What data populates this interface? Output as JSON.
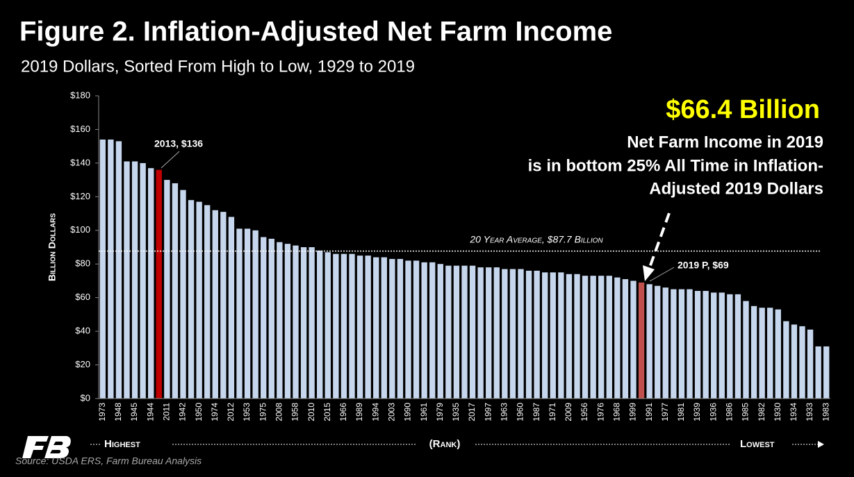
{
  "chart_data": {
    "type": "bar",
    "title": "Figure 2. Inflation-Adjusted Net Farm Income",
    "subtitle": "2019 Dollars, Sorted From High to Low, 1929 to 2019",
    "y_axis_label": "Billion Dollars",
    "categories": [
      "1973",
      null,
      "1948",
      null,
      "1945",
      null,
      "1944",
      null,
      "2011",
      null,
      "1942",
      null,
      "1950",
      null,
      "1974",
      null,
      "2012",
      null,
      "1953",
      null,
      "1975",
      null,
      "2008",
      null,
      "1958",
      null,
      "2010",
      null,
      "2015",
      null,
      "1966",
      null,
      "1989",
      null,
      "1994",
      null,
      "2003",
      null,
      "1990",
      null,
      "1961",
      null,
      "1979",
      null,
      "1935",
      null,
      "2017",
      null,
      "1997",
      null,
      "1963",
      null,
      "1960",
      null,
      "1987",
      null,
      "1971",
      null,
      "2009",
      null,
      "1956",
      null,
      "1976",
      null,
      "1968",
      null,
      "1999",
      null,
      "1991",
      null,
      "1977",
      null,
      "1981",
      null,
      "1939",
      null,
      "1936",
      null,
      "1986",
      null,
      "1985",
      null,
      "1982",
      null,
      "1930",
      null,
      "1934",
      null,
      "1933",
      null,
      "1983"
    ],
    "values": [
      154,
      154,
      153,
      141,
      141,
      140,
      137,
      136,
      130,
      128,
      124,
      118,
      117,
      115,
      112,
      111,
      108,
      101,
      101,
      100,
      96,
      95,
      93,
      92,
      91,
      90,
      90,
      88,
      87,
      86,
      86,
      86,
      85,
      85,
      84,
      84,
      83,
      83,
      82,
      82,
      81,
      81,
      80,
      79,
      79,
      79,
      79,
      78,
      78,
      78,
      77,
      77,
      77,
      76,
      76,
      75,
      75,
      75,
      74,
      74,
      73,
      73,
      73,
      73,
      72,
      71,
      70,
      69,
      68,
      67,
      66,
      65,
      65,
      65,
      64,
      64,
      63,
      63,
      62,
      62,
      58,
      55,
      54,
      54,
      53,
      46,
      44,
      43,
      41,
      31,
      31
    ],
    "color": "#c6d6ec",
    "highlight_colors": {
      "7": "#c00000",
      "67": "#c0504d"
    },
    "ylim": [
      0,
      180
    ],
    "yticks": [
      {
        "value": 0,
        "label": "$0"
      },
      {
        "value": 20,
        "label": "$20"
      },
      {
        "value": 40,
        "label": "$40"
      },
      {
        "value": 60,
        "label": "$60"
      },
      {
        "value": 80,
        "label": "$80"
      },
      {
        "value": 100,
        "label": "$100"
      },
      {
        "value": 120,
        "label": "$120"
      },
      {
        "value": 140,
        "label": "$140"
      },
      {
        "value": 160,
        "label": "$160"
      },
      {
        "value": 180,
        "label": "$180"
      }
    ],
    "reference_line": {
      "value": 87.7,
      "label": "20 Year Average, $87.7 Billion"
    },
    "annotations": {
      "highlight": "$66.4 Billion",
      "note_lines": [
        "Net Farm Income in 2019",
        "is in bottom 25% All Time in Inflation-",
        "Adjusted 2019 Dollars"
      ],
      "label_2013": "2013, $136",
      "label_2019": "2019 P, $69"
    },
    "rank_labels": {
      "high": "Highest",
      "middle": "(Rank)",
      "low": "Lowest"
    },
    "source": "Source: USDA ERS, Farm Bureau Analysis"
  }
}
